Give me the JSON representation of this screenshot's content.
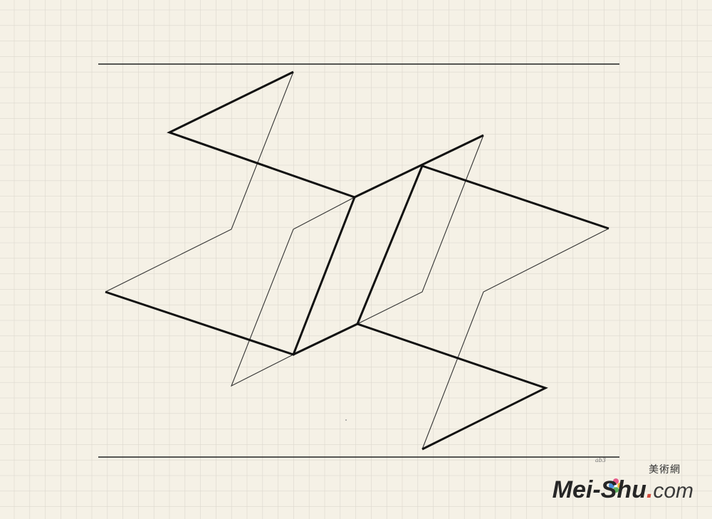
{
  "artwork": {
    "paper_color": "#f5f1e6",
    "grid_color": "#dcd8ce",
    "line_color": "#111111",
    "signature": "ab3"
  },
  "watermark": {
    "cjk_text": "美術網",
    "latin_text": "Mei-Shu",
    "suffix_dot": ".",
    "suffix": "com",
    "accent_color": "#d24a3c"
  }
}
